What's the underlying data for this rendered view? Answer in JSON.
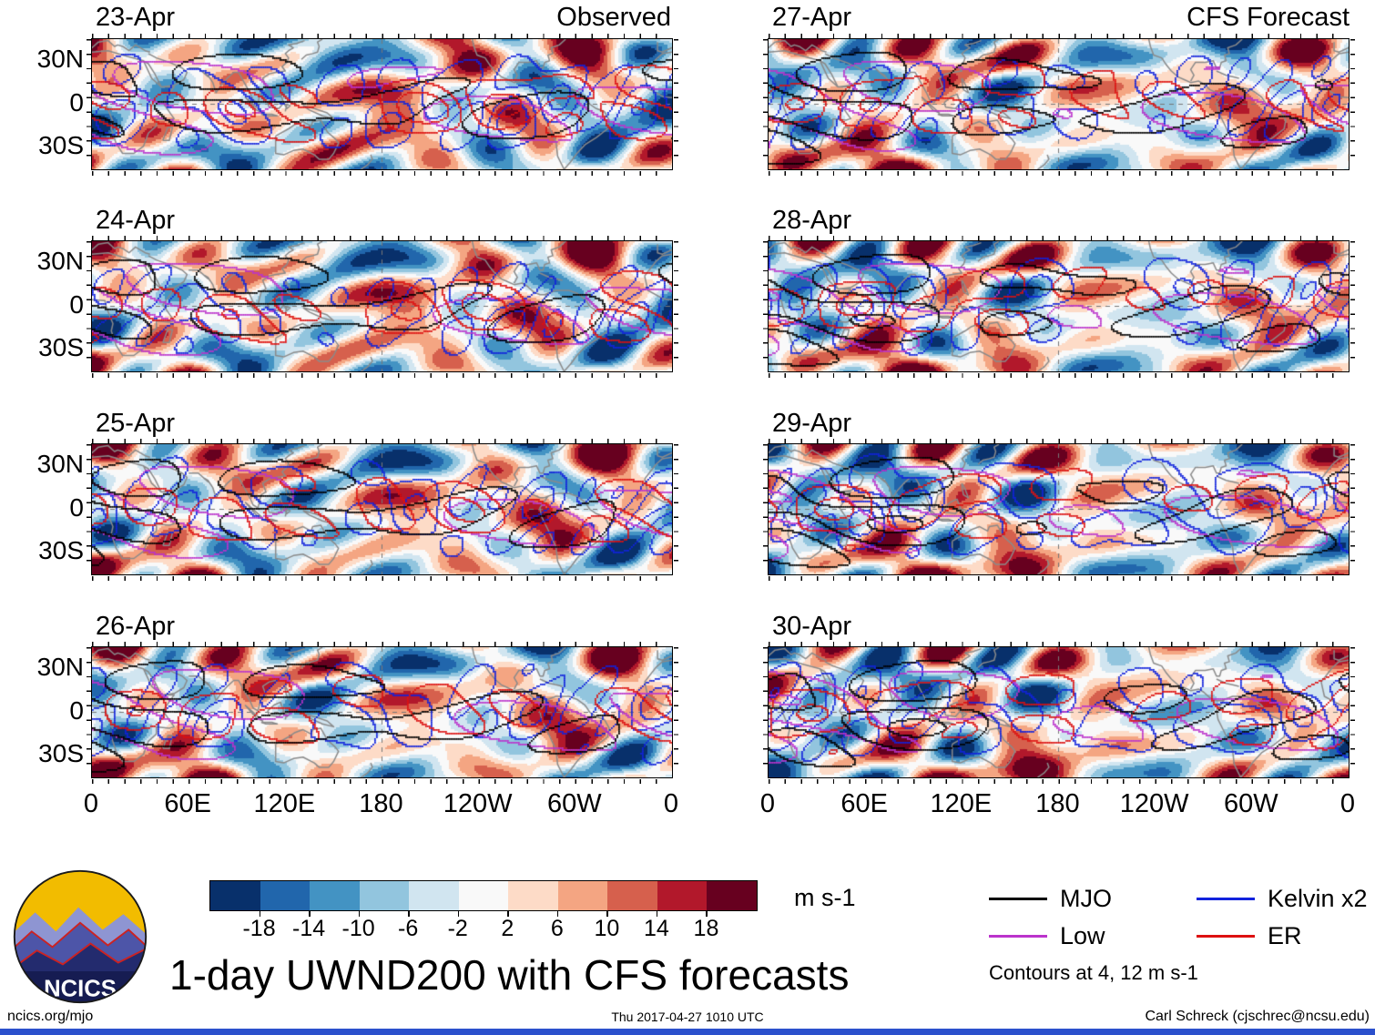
{
  "title": "1-day UWND200 with CFS forecasts",
  "header": {
    "left_label": "Observed",
    "right_label": "CFS Forecast"
  },
  "panels": [
    {
      "date": "23-Apr",
      "column": "Observed"
    },
    {
      "date": "24-Apr",
      "column": "Observed"
    },
    {
      "date": "25-Apr",
      "column": "Observed"
    },
    {
      "date": "26-Apr",
      "column": "Observed"
    },
    {
      "date": "27-Apr",
      "column": "CFS Forecast"
    },
    {
      "date": "28-Apr",
      "column": "CFS Forecast"
    },
    {
      "date": "29-Apr",
      "column": "CFS Forecast"
    },
    {
      "date": "30-Apr",
      "column": "CFS Forecast"
    }
  ],
  "axis": {
    "lat_labels": [
      "30N",
      "0",
      "30S"
    ],
    "lon_labels": [
      "0",
      "60E",
      "120E",
      "180",
      "120W",
      "60W",
      "0"
    ]
  },
  "colorbar": {
    "tick_labels": [
      "-18",
      "-14",
      "-10",
      "-6",
      "-2",
      "2",
      "6",
      "10",
      "14",
      "18"
    ],
    "colors": [
      "#08306b",
      "#2166ac",
      "#4393c3",
      "#92c5de",
      "#d1e5f0",
      "#f9f9f9",
      "#fddbc7",
      "#f4a582",
      "#d6604d",
      "#b2182b",
      "#67001f"
    ],
    "units": "m s-1"
  },
  "legend": {
    "items": [
      {
        "label": "MJO",
        "color": "#000000"
      },
      {
        "label": "Kelvin x2",
        "color": "#1122dd"
      },
      {
        "label": "Low",
        "color": "#bb33cc"
      },
      {
        "label": "ER",
        "color": "#dd1111"
      }
    ],
    "note": "Contours at 4, 12 m s-1"
  },
  "logo": {
    "text": "NCICS"
  },
  "footer": {
    "left": "ncics.org/mjo",
    "center": "Thu 2017-04-27 1010 UTC",
    "right": "Carl Schreck (cjschrec@ncsu.edu)"
  },
  "chart_data": {
    "type": "heatmap",
    "variable": "UWND200 anomaly with CFS forecasts",
    "units": "m s-1",
    "title": "1-day UWND200 with CFS forecasts",
    "panels": [
      {
        "date": "23-Apr",
        "kind": "Observed"
      },
      {
        "date": "24-Apr",
        "kind": "Observed"
      },
      {
        "date": "25-Apr",
        "kind": "Observed"
      },
      {
        "date": "26-Apr",
        "kind": "Observed"
      },
      {
        "date": "27-Apr",
        "kind": "CFS Forecast"
      },
      {
        "date": "28-Apr",
        "kind": "CFS Forecast"
      },
      {
        "date": "29-Apr",
        "kind": "CFS Forecast"
      },
      {
        "date": "30-Apr",
        "kind": "CFS Forecast"
      }
    ],
    "x_axis": {
      "label": "longitude",
      "ticks": [
        "0",
        "60E",
        "120E",
        "180",
        "120W",
        "60W",
        "0"
      ],
      "range_deg": [
        0,
        360
      ]
    },
    "y_axis": {
      "label": "latitude",
      "ticks": [
        "30N",
        "0",
        "30S"
      ],
      "range_deg": [
        -45,
        45
      ]
    },
    "fill_levels": [
      -18,
      -14,
      -10,
      -6,
      -2,
      2,
      6,
      10,
      14,
      18
    ],
    "contour_levels": [
      4,
      12
    ],
    "overlay_series": [
      "MJO",
      "Low",
      "Kelvin x2",
      "ER"
    ],
    "legend_position": "bottom-right",
    "grid": "dashed reference lines at equator and 180"
  }
}
